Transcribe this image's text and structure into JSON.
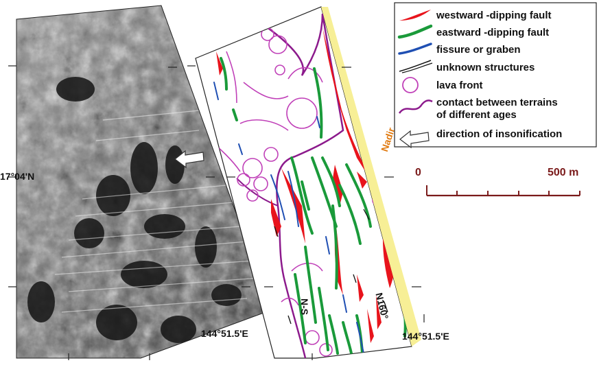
{
  "map": {
    "latitude_label": "17°04'N",
    "longitude_label_left": "144°51.5'E",
    "longitude_label_right": "144°51.5'E",
    "nadir_label": "Nadir",
    "ns_label": "N-S",
    "n160_label": "N160°"
  },
  "legend": {
    "items": [
      {
        "symbol": "westward-fault",
        "color": "#e8141c",
        "label": "westward -dipping fault"
      },
      {
        "symbol": "eastward-fault",
        "color": "#1a9a3a",
        "label": "eastward -dipping fault"
      },
      {
        "symbol": "fissure",
        "color": "#1f4fb3",
        "label": "fissure or graben"
      },
      {
        "symbol": "unknown",
        "color": "#111111",
        "label": "unknown structures"
      },
      {
        "symbol": "lava-front",
        "color": "#c040b8",
        "label": "lava front"
      },
      {
        "symbol": "contact",
        "color": "#8c1a8c",
        "label_line1": "contact between terrains",
        "label_line2": "of different ages"
      },
      {
        "symbol": "arrow",
        "color": "#333333",
        "label": "direction of insonification"
      }
    ]
  },
  "scale_bar": {
    "start_label": "0",
    "end_label": "500 m",
    "color": "#7a1a1a"
  },
  "colors": {
    "nadir_band": "#f7ef96",
    "nadir_text": "#e07a10",
    "sonar_dark": "#1a1a1a"
  }
}
